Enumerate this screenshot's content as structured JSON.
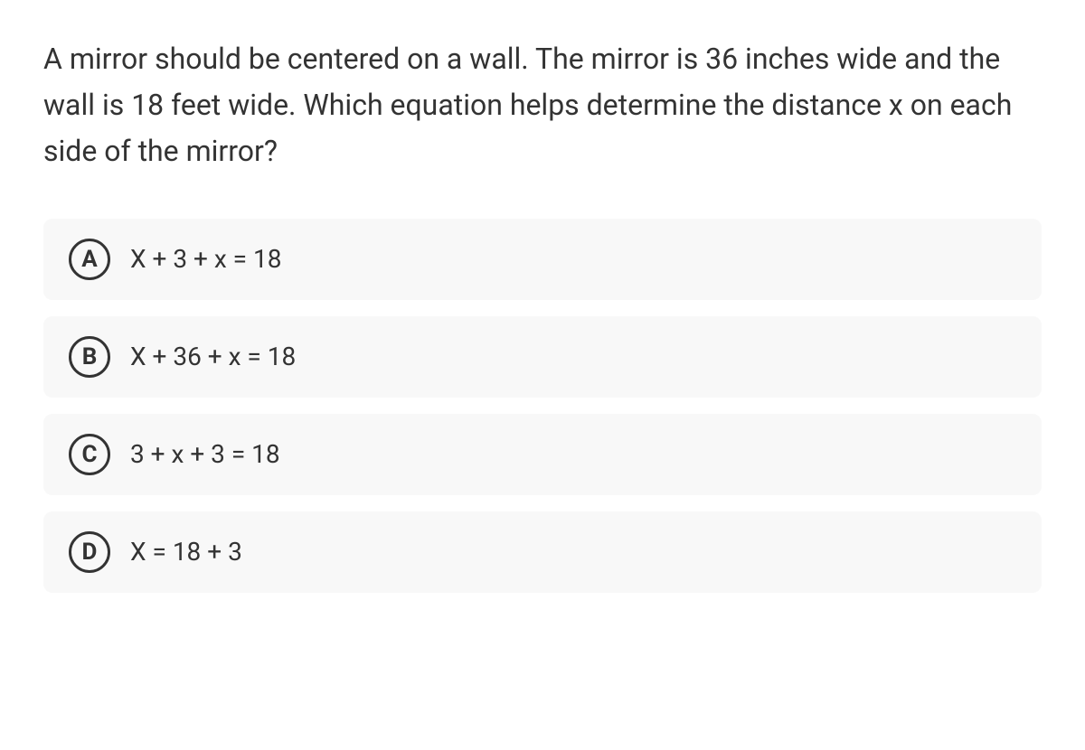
{
  "question": "A mirror should be centered on a wall. The mirror is 36 inches wide and the wall is 18 feet wide. Which equation helps determine the distance x on each side of the mirror?",
  "options": [
    {
      "letter": "A",
      "text": "X + 3 + x = 18"
    },
    {
      "letter": "B",
      "text": "X + 36 + x = 18"
    },
    {
      "letter": "C",
      "text": "3 + x + 3 = 18"
    },
    {
      "letter": "D",
      "text": "X = 18 + 3"
    }
  ],
  "colors": {
    "background": "#ffffff",
    "option_bg": "#f8f8f8",
    "text": "#333333",
    "circle_border": "#333333"
  },
  "typography": {
    "question_fontsize": 32,
    "option_fontsize": 28,
    "letter_fontsize": 26
  }
}
